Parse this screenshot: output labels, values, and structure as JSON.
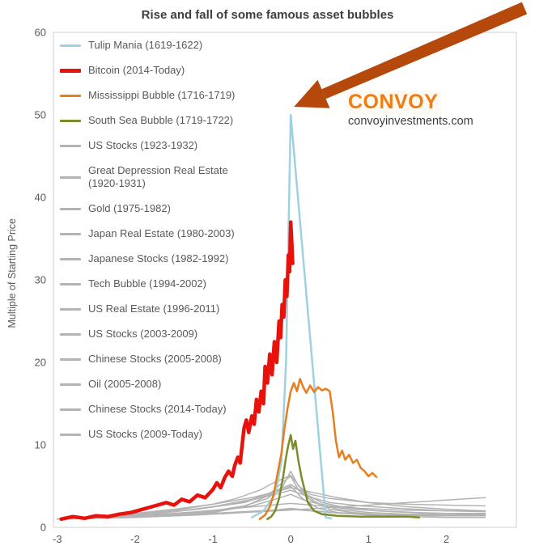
{
  "logo": {
    "name": "CONVOY",
    "site": "convoyinvestments.com",
    "color": "#f07c12"
  },
  "arrow": {
    "color": "#b5490b"
  },
  "axis": {
    "text_color": "#595959",
    "line_color": "#d0d0d0"
  },
  "chart_data": {
    "type": "line",
    "title": "Rise and fall of some famous asset bubbles",
    "xlabel": "",
    "ylabel": "Multiple of Starting Price",
    "ylim": [
      0,
      60
    ],
    "xlim": [
      -3.05,
      2.9
    ],
    "yticks": [
      0,
      10,
      20,
      30,
      40,
      50,
      60
    ],
    "xticks": [
      -3,
      -2,
      -1,
      0,
      1,
      2
    ],
    "legend_position": "upper-left-inside",
    "grid": false,
    "series": [
      {
        "name": "Tulip Mania (1619-1622)",
        "color": "#9fd1e2",
        "width": 2.5,
        "zorder": 2,
        "points": [
          [
            -0.5,
            1.2
          ],
          [
            -0.35,
            2
          ],
          [
            -0.2,
            4
          ],
          [
            -0.12,
            8
          ],
          [
            -0.06,
            20
          ],
          [
            0,
            50
          ],
          [
            0.45,
            1.2
          ],
          [
            0.52,
            1.1
          ]
        ]
      },
      {
        "name": "Bitcoin (2014-Today)",
        "color": "#e8120c",
        "width": 4.5,
        "zorder": 5,
        "points": [
          [
            -2.95,
            1
          ],
          [
            -2.8,
            1.3
          ],
          [
            -2.65,
            1.1
          ],
          [
            -2.5,
            1.4
          ],
          [
            -2.35,
            1.3
          ],
          [
            -2.2,
            1.6
          ],
          [
            -2.05,
            1.8
          ],
          [
            -1.9,
            2.2
          ],
          [
            -1.75,
            2.6
          ],
          [
            -1.6,
            3
          ],
          [
            -1.5,
            2.7
          ],
          [
            -1.4,
            3.4
          ],
          [
            -1.3,
            3.1
          ],
          [
            -1.2,
            3.9
          ],
          [
            -1.1,
            3.6
          ],
          [
            -1.0,
            4.6
          ],
          [
            -0.95,
            5.4
          ],
          [
            -0.9,
            4.8
          ],
          [
            -0.85,
            6
          ],
          [
            -0.8,
            6.8
          ],
          [
            -0.75,
            6.2
          ],
          [
            -0.72,
            7.5
          ],
          [
            -0.68,
            8.5
          ],
          [
            -0.65,
            7.8
          ],
          [
            -0.6,
            12
          ],
          [
            -0.57,
            13
          ],
          [
            -0.54,
            11.5
          ],
          [
            -0.5,
            13.5
          ],
          [
            -0.47,
            12.5
          ],
          [
            -0.44,
            15.5
          ],
          [
            -0.41,
            14
          ],
          [
            -0.38,
            16.5
          ],
          [
            -0.35,
            15
          ],
          [
            -0.33,
            19.5
          ],
          [
            -0.3,
            17.5
          ],
          [
            -0.27,
            21
          ],
          [
            -0.24,
            18.5
          ],
          [
            -0.21,
            22.5
          ],
          [
            -0.18,
            20
          ],
          [
            -0.15,
            25
          ],
          [
            -0.13,
            23
          ],
          [
            -0.11,
            27
          ],
          [
            -0.09,
            25.5
          ],
          [
            -0.07,
            30
          ],
          [
            -0.05,
            28
          ],
          [
            -0.03,
            33
          ],
          [
            -0.015,
            31
          ],
          [
            0,
            37
          ],
          [
            0.015,
            34
          ],
          [
            0.025,
            32
          ]
        ]
      },
      {
        "name": "Mississippi Bubble (1716-1719)",
        "color": "#e87d1e",
        "width": 2.5,
        "zorder": 4,
        "points": [
          [
            -0.4,
            1
          ],
          [
            -0.33,
            1.5
          ],
          [
            -0.27,
            2.5
          ],
          [
            -0.22,
            4
          ],
          [
            -0.17,
            6.5
          ],
          [
            -0.12,
            9
          ],
          [
            -0.08,
            12
          ],
          [
            -0.04,
            14.5
          ],
          [
            0,
            16.5
          ],
          [
            0.04,
            17.5
          ],
          [
            0.08,
            16.5
          ],
          [
            0.12,
            18
          ],
          [
            0.16,
            17
          ],
          [
            0.2,
            16.3
          ],
          [
            0.25,
            17.2
          ],
          [
            0.3,
            16.4
          ],
          [
            0.35,
            17
          ],
          [
            0.4,
            16.6
          ],
          [
            0.45,
            16.8
          ],
          [
            0.5,
            16.5
          ],
          [
            0.54,
            14
          ],
          [
            0.58,
            10.5
          ],
          [
            0.62,
            8.5
          ],
          [
            0.66,
            9.3
          ],
          [
            0.7,
            8.2
          ],
          [
            0.75,
            8.8
          ],
          [
            0.8,
            7.8
          ],
          [
            0.85,
            8.2
          ],
          [
            0.9,
            7.2
          ],
          [
            0.95,
            6.8
          ],
          [
            1.0,
            6.2
          ],
          [
            1.05,
            6.6
          ],
          [
            1.1,
            6.1
          ]
        ]
      },
      {
        "name": "South Sea Bubble (1719-1722)",
        "color": "#7d8c2a",
        "width": 2.5,
        "zorder": 3,
        "points": [
          [
            -0.3,
            1
          ],
          [
            -0.25,
            1.3
          ],
          [
            -0.2,
            2
          ],
          [
            -0.15,
            3.5
          ],
          [
            -0.1,
            6
          ],
          [
            -0.06,
            8.5
          ],
          [
            -0.03,
            10
          ],
          [
            0,
            11.2
          ],
          [
            0.03,
            9.5
          ],
          [
            0.06,
            10.5
          ],
          [
            0.1,
            8
          ],
          [
            0.14,
            6
          ],
          [
            0.18,
            4.5
          ],
          [
            0.22,
            3
          ],
          [
            0.3,
            2
          ],
          [
            0.4,
            1.6
          ],
          [
            0.6,
            1.4
          ],
          [
            0.9,
            1.3
          ],
          [
            1.2,
            1.3
          ],
          [
            1.5,
            1.3
          ],
          [
            1.65,
            1.2
          ]
        ]
      },
      {
        "name": "US Stocks (1923-1932)",
        "color": "#b3b3b3",
        "width": 1.5,
        "zorder": 1,
        "points": [
          [
            -3,
            1
          ],
          [
            -2.6,
            1.2
          ],
          [
            -2.2,
            1.5
          ],
          [
            -1.8,
            1.8
          ],
          [
            -1.4,
            2.2
          ],
          [
            -1,
            2.8
          ],
          [
            -0.7,
            3.5
          ],
          [
            -0.4,
            4.5
          ],
          [
            -0.2,
            5.5
          ],
          [
            0,
            6.3
          ],
          [
            0.15,
            4.5
          ],
          [
            0.3,
            3.2
          ],
          [
            0.5,
            2.2
          ],
          [
            0.8,
            1.8
          ],
          [
            1.2,
            1.5
          ],
          [
            1.6,
            1.6
          ],
          [
            2,
            1.5
          ],
          [
            2.5,
            1.5
          ]
        ]
      },
      {
        "name": "Great Depression Real Estate (1920-1931)",
        "color": "#b3b3b3",
        "width": 1.5,
        "zorder": 1,
        "points": [
          [
            -3,
            1
          ],
          [
            -2.4,
            1.1
          ],
          [
            -1.8,
            1.3
          ],
          [
            -1.2,
            1.6
          ],
          [
            -0.6,
            1.9
          ],
          [
            0,
            2.2
          ],
          [
            0.5,
            1.8
          ],
          [
            1,
            1.5
          ],
          [
            1.5,
            1.3
          ],
          [
            2,
            1.2
          ],
          [
            2.5,
            1.2
          ]
        ]
      },
      {
        "name": "Gold (1975-1982)",
        "color": "#b3b3b3",
        "width": 1.5,
        "zorder": 1,
        "points": [
          [
            -3,
            1
          ],
          [
            -2.5,
            1.1
          ],
          [
            -2,
            1.3
          ],
          [
            -1.5,
            1.6
          ],
          [
            -1,
            2
          ],
          [
            -0.6,
            2.6
          ],
          [
            -0.3,
            3.5
          ],
          [
            -0.1,
            5
          ],
          [
            0,
            6.8
          ],
          [
            0.1,
            5
          ],
          [
            0.25,
            4
          ],
          [
            0.5,
            3.5
          ],
          [
            1,
            3
          ],
          [
            1.5,
            2.8
          ],
          [
            2,
            2.7
          ],
          [
            2.5,
            2.6
          ]
        ]
      },
      {
        "name": "Japan Real Estate (1980-2003)",
        "color": "#b3b3b3",
        "width": 1.5,
        "zorder": 1,
        "points": [
          [
            -3,
            1
          ],
          [
            -2.5,
            1.3
          ],
          [
            -2,
            1.7
          ],
          [
            -1.5,
            2.2
          ],
          [
            -1,
            2.8
          ],
          [
            -0.5,
            3.6
          ],
          [
            -0.2,
            4.3
          ],
          [
            0,
            4.8
          ],
          [
            0.3,
            4.2
          ],
          [
            0.6,
            3.6
          ],
          [
            1,
            3
          ],
          [
            1.5,
            2.5
          ],
          [
            2,
            2.2
          ],
          [
            2.5,
            2
          ]
        ]
      },
      {
        "name": "Japanese Stocks (1982-1992)",
        "color": "#b3b3b3",
        "width": 1.5,
        "zorder": 1,
        "points": [
          [
            -3,
            1
          ],
          [
            -2.4,
            1.2
          ],
          [
            -1.8,
            1.6
          ],
          [
            -1.2,
            2.2
          ],
          [
            -0.6,
            3.1
          ],
          [
            -0.2,
            4
          ],
          [
            0,
            4.5
          ],
          [
            0.2,
            3.8
          ],
          [
            0.5,
            3
          ],
          [
            0.9,
            2.6
          ],
          [
            1.4,
            2.3
          ],
          [
            2,
            2
          ],
          [
            2.5,
            1.9
          ]
        ]
      },
      {
        "name": "Tech Bubble (1994-2002)",
        "color": "#b3b3b3",
        "width": 1.5,
        "zorder": 1,
        "points": [
          [
            -3,
            1
          ],
          [
            -2.5,
            1.2
          ],
          [
            -2,
            1.5
          ],
          [
            -1.5,
            1.9
          ],
          [
            -1,
            2.5
          ],
          [
            -0.5,
            3.4
          ],
          [
            -0.2,
            4.4
          ],
          [
            0,
            5.2
          ],
          [
            0.2,
            4
          ],
          [
            0.4,
            3
          ],
          [
            0.7,
            2.4
          ],
          [
            1.1,
            2
          ],
          [
            1.6,
            1.8
          ],
          [
            2,
            1.7
          ],
          [
            2.5,
            1.7
          ]
        ]
      },
      {
        "name": "US Real Estate (1996-2011)",
        "color": "#b3b3b3",
        "width": 1.5,
        "zorder": 1,
        "points": [
          [
            -3,
            1
          ],
          [
            -2.4,
            1.2
          ],
          [
            -1.8,
            1.5
          ],
          [
            -1.2,
            1.9
          ],
          [
            -0.6,
            2.4
          ],
          [
            0,
            2.9
          ],
          [
            0.4,
            2.6
          ],
          [
            0.8,
            2.2
          ],
          [
            1.3,
            1.9
          ],
          [
            1.8,
            1.7
          ],
          [
            2.5,
            1.6
          ]
        ]
      },
      {
        "name": "US Stocks (2003-2009)",
        "color": "#b3b3b3",
        "width": 1.5,
        "zorder": 1,
        "points": [
          [
            -3,
            1
          ],
          [
            -2.2,
            1.2
          ],
          [
            -1.5,
            1.4
          ],
          [
            -0.8,
            1.7
          ],
          [
            -0.3,
            2
          ],
          [
            0,
            2.3
          ],
          [
            0.3,
            2
          ],
          [
            0.7,
            1.7
          ],
          [
            1.2,
            1.5
          ],
          [
            1.8,
            1.4
          ],
          [
            2.5,
            1.4
          ]
        ]
      },
      {
        "name": "Chinese Stocks (2005-2008)",
        "color": "#b3b3b3",
        "width": 1.5,
        "zorder": 1,
        "points": [
          [
            -3,
            1
          ],
          [
            -2.5,
            1.1
          ],
          [
            -2,
            1.2
          ],
          [
            -1.5,
            1.4
          ],
          [
            -1,
            1.8
          ],
          [
            -0.6,
            2.5
          ],
          [
            -0.3,
            3.8
          ],
          [
            -0.1,
            5.5
          ],
          [
            0,
            6.2
          ],
          [
            0.1,
            4.5
          ],
          [
            0.3,
            3
          ],
          [
            0.6,
            2.2
          ],
          [
            1,
            1.8
          ],
          [
            1.5,
            1.6
          ],
          [
            2,
            1.5
          ],
          [
            2.5,
            1.5
          ]
        ]
      },
      {
        "name": "Oil (2005-2008)",
        "color": "#b3b3b3",
        "width": 1.5,
        "zorder": 1,
        "points": [
          [
            -3,
            1
          ],
          [
            -2.4,
            1.3
          ],
          [
            -1.8,
            1.7
          ],
          [
            -1.2,
            2.2
          ],
          [
            -0.6,
            3
          ],
          [
            -0.2,
            4.2
          ],
          [
            0,
            5
          ],
          [
            0.15,
            3.5
          ],
          [
            0.35,
            2.3
          ],
          [
            0.6,
            1.8
          ],
          [
            1,
            1.6
          ],
          [
            1.5,
            1.5
          ],
          [
            2,
            1.5
          ],
          [
            2.5,
            1.4
          ]
        ]
      },
      {
        "name": "Chinese Stocks (2014-Today)",
        "color": "#b3b3b3",
        "width": 1.5,
        "zorder": 1,
        "points": [
          [
            -3,
            1
          ],
          [
            -2.3,
            1.2
          ],
          [
            -1.6,
            1.5
          ],
          [
            -1,
            1.9
          ],
          [
            -0.5,
            2.6
          ],
          [
            -0.2,
            3.4
          ],
          [
            0,
            4
          ],
          [
            0.2,
            3.2
          ],
          [
            0.5,
            2.6
          ],
          [
            0.9,
            2.3
          ],
          [
            1.4,
            2.1
          ],
          [
            2,
            2
          ],
          [
            2.5,
            2
          ]
        ]
      },
      {
        "name": "US Stocks (2009-Today)",
        "color": "#b3b3b3",
        "width": 1.5,
        "zorder": 1,
        "points": [
          [
            -3,
            1
          ],
          [
            -2.4,
            1.1
          ],
          [
            -1.8,
            1.3
          ],
          [
            -1.2,
            1.5
          ],
          [
            -0.6,
            1.8
          ],
          [
            0,
            2.1
          ],
          [
            0.5,
            2.4
          ],
          [
            1,
            2.7
          ],
          [
            1.5,
            3
          ],
          [
            2,
            3.3
          ],
          [
            2.5,
            3.6
          ]
        ]
      }
    ]
  }
}
